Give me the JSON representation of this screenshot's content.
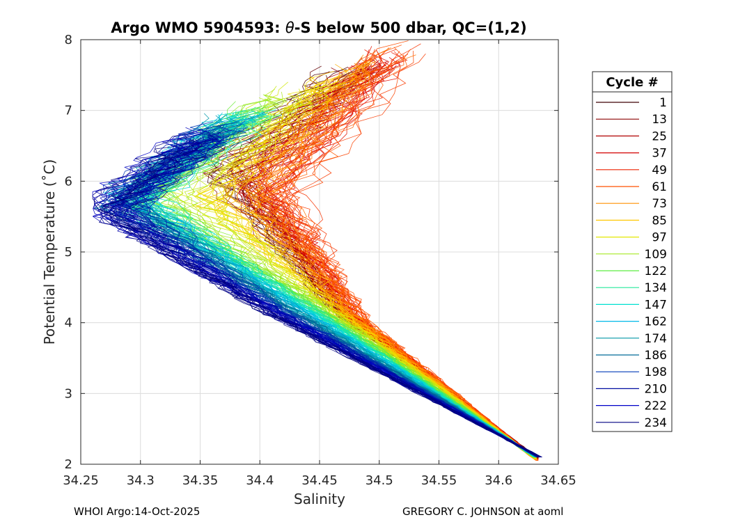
{
  "chart_data": {
    "type": "line",
    "title_prefix": "Argo WMO 5904593: ",
    "title_theta": "θ",
    "title_suffix": "-S below 500 dbar,  QC=(1,2)",
    "xlabel": "Salinity",
    "ylabel": "Potential Temperature (˚C)",
    "xlim": [
      34.25,
      34.65
    ],
    "ylim": [
      2,
      8
    ],
    "xticks": [
      34.25,
      34.3,
      34.35,
      34.4,
      34.45,
      34.5,
      34.55,
      34.6,
      34.65
    ],
    "yticks": [
      2,
      3,
      4,
      5,
      6,
      7,
      8
    ],
    "xtick_labels": [
      "34.25",
      "34.3",
      "34.35",
      "34.4",
      "34.45",
      "34.5",
      "34.55",
      "34.6",
      "34.65"
    ],
    "ytick_labels": [
      "2",
      "3",
      "4",
      "5",
      "6",
      "7",
      "8"
    ],
    "grid": true,
    "legend_title": "Cycle #",
    "legend_position": "outside-right",
    "legend": [
      {
        "label": "1",
        "color": "#3d0005"
      },
      {
        "label": "13",
        "color": "#8c0000"
      },
      {
        "label": "25",
        "color": "#b00000"
      },
      {
        "label": "37",
        "color": "#d40000"
      },
      {
        "label": "49",
        "color": "#ee2000"
      },
      {
        "label": "61",
        "color": "#ff5000"
      },
      {
        "label": "73",
        "color": "#ff9000"
      },
      {
        "label": "85",
        "color": "#ffc800"
      },
      {
        "label": "97",
        "color": "#e4e800"
      },
      {
        "label": "109",
        "color": "#a6e820"
      },
      {
        "label": "122",
        "color": "#5ced40"
      },
      {
        "label": "134",
        "color": "#25e89a"
      },
      {
        "label": "147",
        "color": "#00e0d0"
      },
      {
        "label": "162",
        "color": "#00b8e8"
      },
      {
        "label": "174",
        "color": "#0096a6"
      },
      {
        "label": "186",
        "color": "#006a96"
      },
      {
        "label": "198",
        "color": "#003ab8"
      },
      {
        "label": "210",
        "color": "#000ca0"
      },
      {
        "label": "222",
        "color": "#0000c8"
      },
      {
        "label": "234",
        "color": "#000080"
      }
    ],
    "envelope_by_cycle": [
      {
        "cycle": 1,
        "deep": [
          34.632,
          2.1
        ],
        "mid": [
          34.46,
          4.2
        ],
        "top_left": [
          34.36,
          6.2
        ],
        "top": [
          34.47,
          7.5
        ]
      },
      {
        "cycle": 61,
        "deep": [
          34.632,
          2.05
        ],
        "mid": [
          34.49,
          4.0
        ],
        "top_left": [
          34.42,
          5.8
        ],
        "top": [
          34.52,
          7.9
        ]
      },
      {
        "cycle": 122,
        "deep": [
          34.63,
          2.1
        ],
        "mid": [
          34.44,
          4.3
        ],
        "top_left": [
          34.3,
          5.8
        ],
        "top": [
          34.4,
          7.05
        ]
      },
      {
        "cycle": 234,
        "deep": [
          34.635,
          2.1
        ],
        "mid": [
          34.4,
          4.2
        ],
        "top_left": [
          34.27,
          5.6
        ],
        "top": [
          34.35,
          6.6
        ]
      }
    ]
  },
  "footer": {
    "left": "WHOI Argo:14-Oct-2025",
    "right": "GREGORY C. JOHNSON at aoml"
  }
}
